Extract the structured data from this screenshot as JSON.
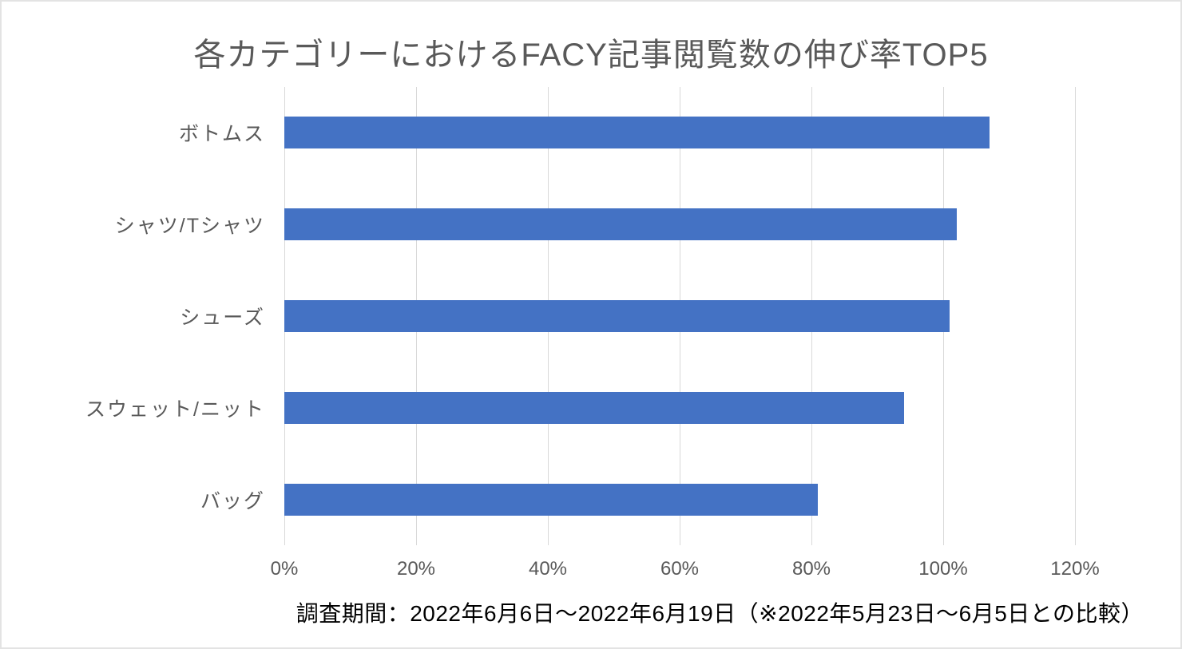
{
  "chart_data": {
    "type": "bar",
    "orientation": "horizontal",
    "title": "各カテゴリーにおけるFACY記事閲覧数の伸び率TOP5",
    "categories": [
      "ボトムス",
      "シャツ/Tシャツ",
      "シューズ",
      "スウェット/ニット",
      "バッグ"
    ],
    "values": [
      107,
      102,
      101,
      94,
      81
    ],
    "value_unit": "%",
    "xlabel": "",
    "ylabel": "",
    "xlim": [
      0,
      120
    ],
    "xticks": [
      0,
      20,
      40,
      60,
      80,
      100,
      120
    ],
    "xtick_labels": [
      "0%",
      "20%",
      "40%",
      "60%",
      "80%",
      "100%",
      "120%"
    ],
    "grid": "vertical-only",
    "legend": "none",
    "colors": {
      "bar": "#4472C4",
      "gridline": "#D9D9D9",
      "title_text": "#595959",
      "axis_text": "#595959"
    }
  },
  "caption": {
    "text": "調査期間：2022年6月6日〜2022年6月19日（※2022年5月23日〜6月5日との比較）",
    "color": "#000000"
  }
}
